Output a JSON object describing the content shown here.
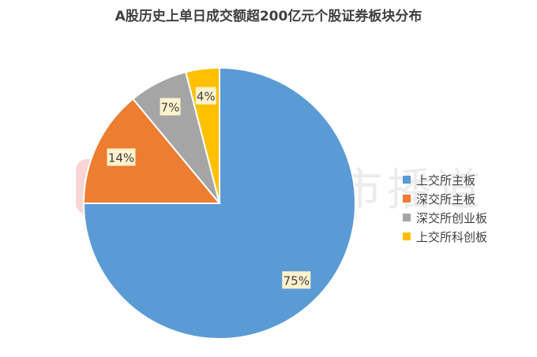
{
  "chart_data": {
    "type": "pie",
    "title": "A股历史上单日成交额超200亿元个股证券板块分布",
    "categories": [
      "上交所主板",
      "深交所主板",
      "深交所创业板",
      "上交所科创板"
    ],
    "values": [
      75,
      14,
      7,
      4
    ],
    "data_labels": [
      "75%",
      "14%",
      "7%",
      "4%"
    ],
    "colors": [
      "#5B9BD5",
      "#ED7D31",
      "#A5A5A5",
      "#FFC000"
    ],
    "legend_position": "right"
  },
  "watermark": {
    "text": "财联社股市播道",
    "icon": "cls-logo-icon"
  }
}
